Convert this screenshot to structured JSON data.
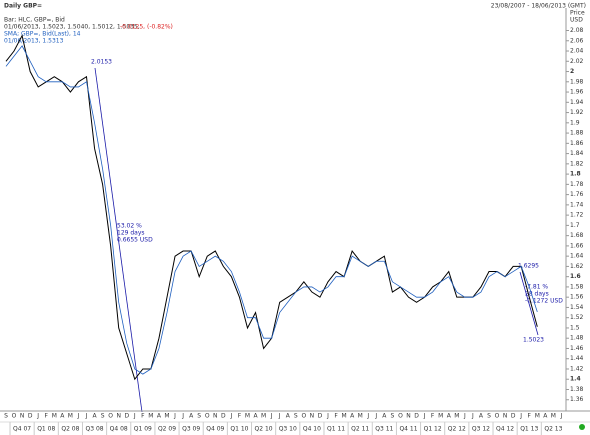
{
  "chart_data": {
    "type": "line",
    "title": "Daily GBP=",
    "date_range": "23/08/2007 - 18/06/2013 (GMT)",
    "y_label": "Price",
    "y_unit": "USD",
    "legend_values": [
      "01/06/2013, 1.5023, 1.5040, 1.5012, 1.5035,",
      "-0.0125, (-0.82%)",
      "01/06/2013, 1.5313"
    ],
    "annotations": [
      "2.0153",
      "53.02 %",
      "129 days",
      "0.6655 USD",
      "1.6295",
      "-7.81 %",
      "28 days",
      "-0.1272 USD",
      "1.5023"
    ],
    "categories": [
      "S",
      "O",
      "N",
      "D",
      "J",
      "F",
      "M",
      "A",
      "M",
      "J",
      "J",
      "A",
      "S",
      "O",
      "N",
      "D",
      "J",
      "F",
      "M",
      "A",
      "M",
      "J",
      "J",
      "A",
      "S",
      "O",
      "N",
      "D",
      "J",
      "F",
      "M",
      "A",
      "M",
      "J",
      "J",
      "A",
      "S",
      "O",
      "N",
      "D",
      "J",
      "F",
      "M",
      "A",
      "M",
      "J",
      "J",
      "A",
      "S",
      "O",
      "N",
      "D",
      "J",
      "F",
      "M",
      "A",
      "M",
      "J",
      "J",
      "A",
      "S",
      "O",
      "N",
      "D",
      "J",
      "F",
      "M",
      "A",
      "M",
      "J"
    ],
    "quarters": [
      "Q4 07",
      "Q1 08",
      "Q2 08",
      "Q3 08",
      "Q4 08",
      "Q1 09",
      "Q2 09",
      "Q3 09",
      "Q4 09",
      "Q1 10",
      "Q2 10",
      "Q3 10",
      "Q4 10",
      "Q1 11",
      "Q2 11",
      "Q3 11",
      "Q4 11",
      "Q1 12",
      "Q2 12",
      "Q3 12",
      "Q4 12",
      "Q1 13",
      "Q2 13"
    ],
    "series": [
      {
        "name": "Bar; HLC, GBP=, Bid",
        "color": "#000000",
        "values": [
          2.02,
          2.04,
          2.07,
          2.0,
          1.97,
          1.98,
          1.99,
          1.98,
          1.96,
          1.98,
          1.99,
          1.85,
          1.78,
          1.66,
          1.5,
          1.45,
          1.4,
          1.42,
          1.42,
          1.48,
          1.56,
          1.64,
          1.65,
          1.65,
          1.6,
          1.64,
          1.65,
          1.62,
          1.6,
          1.56,
          1.5,
          1.53,
          1.46,
          1.48,
          1.55,
          1.56,
          1.57,
          1.59,
          1.57,
          1.56,
          1.59,
          1.61,
          1.6,
          1.65,
          1.63,
          1.62,
          1.63,
          1.64,
          1.57,
          1.58,
          1.56,
          1.55,
          1.56,
          1.58,
          1.59,
          1.61,
          1.56,
          1.56,
          1.56,
          1.58,
          1.61,
          1.61,
          1.6,
          1.62,
          1.62,
          1.56,
          1.5023,
          null,
          null,
          null
        ]
      },
      {
        "name": "SMA; GBP=, Bid(Last), 14",
        "color": "#1f5fbf",
        "values": [
          2.01,
          2.03,
          2.05,
          2.02,
          1.99,
          1.98,
          1.98,
          1.98,
          1.97,
          1.97,
          1.98,
          1.9,
          1.81,
          1.7,
          1.55,
          1.47,
          1.42,
          1.41,
          1.42,
          1.46,
          1.53,
          1.61,
          1.64,
          1.65,
          1.62,
          1.63,
          1.64,
          1.63,
          1.61,
          1.57,
          1.52,
          1.52,
          1.48,
          1.48,
          1.53,
          1.55,
          1.57,
          1.58,
          1.58,
          1.57,
          1.58,
          1.6,
          1.6,
          1.64,
          1.63,
          1.62,
          1.63,
          1.63,
          1.59,
          1.58,
          1.57,
          1.56,
          1.56,
          1.57,
          1.59,
          1.6,
          1.57,
          1.56,
          1.56,
          1.57,
          1.6,
          1.61,
          1.6,
          1.61,
          1.62,
          1.58,
          1.5313,
          null,
          null,
          null
        ]
      }
    ],
    "ylim": [
      1.34,
      2.12
    ],
    "yticks": [
      1.36,
      1.38,
      1.4,
      1.42,
      1.44,
      1.46,
      1.48,
      1.5,
      1.52,
      1.54,
      1.56,
      1.58,
      1.6,
      1.62,
      1.64,
      1.66,
      1.68,
      1.7,
      1.72,
      1.74,
      1.76,
      1.78,
      1.8,
      1.82,
      1.84,
      1.86,
      1.88,
      1.9,
      1.92,
      1.94,
      1.96,
      1.98,
      2,
      2.02,
      2.04,
      2.06,
      2.08
    ]
  }
}
